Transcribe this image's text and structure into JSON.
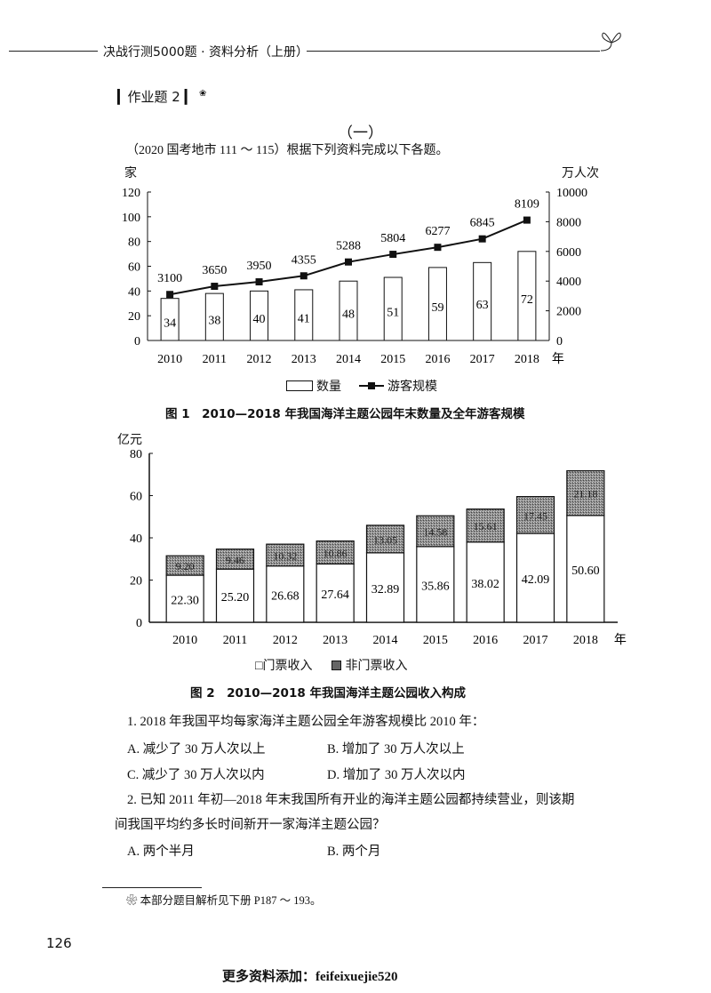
{
  "header": {
    "title": "决战行测5000题 · 资料分析（上册）",
    "leaf_icon": "sprout-icon"
  },
  "assignment": {
    "title": "▎作业题 2 ▎",
    "note_mark": "❀"
  },
  "section": {
    "label": "（一）",
    "intro": "（2020 国考地市 111 ～ 115）根据下列资料完成以下各题。"
  },
  "chart_data": [
    {
      "type": "bar+line",
      "title": "图 1　2010—2018 年我国海洋主题公园年末数量及全年游客规模",
      "categories": [
        "2010",
        "2011",
        "2012",
        "2013",
        "2014",
        "2015",
        "2016",
        "2017",
        "2018"
      ],
      "xlabel": "年",
      "ylabel_left": "家",
      "ylabel_right": "万人次",
      "ylim_left": [
        0,
        120
      ],
      "yticks_left": [
        0,
        20,
        40,
        60,
        80,
        100,
        120
      ],
      "ylim_right": [
        0,
        10000
      ],
      "yticks_right": [
        0,
        2000,
        4000,
        6000,
        8000,
        10000
      ],
      "series": [
        {
          "name": "数量",
          "type": "bar",
          "axis": "left",
          "values": [
            34,
            38,
            40,
            41,
            48,
            51,
            59,
            63,
            72
          ]
        },
        {
          "name": "游客规模",
          "type": "line",
          "axis": "right",
          "values": [
            3100,
            3650,
            3950,
            4355,
            5288,
            5804,
            6277,
            6845,
            8109
          ]
        }
      ],
      "legend": [
        "数量",
        "游客规模"
      ],
      "legend_position": "bottom"
    },
    {
      "type": "stacked-bar",
      "title": "图 2　2010—2018 年我国海洋主题公园收入构成",
      "categories": [
        "2010",
        "2011",
        "2012",
        "2013",
        "2014",
        "2015",
        "2016",
        "2017",
        "2018"
      ],
      "xlabel": "年",
      "ylabel": "亿元",
      "ylim": [
        0,
        80
      ],
      "yticks": [
        0,
        20,
        40,
        60,
        80
      ],
      "series": [
        {
          "name": "门票收入",
          "values": [
            22.3,
            25.2,
            26.68,
            27.64,
            32.89,
            35.86,
            38.02,
            42.09,
            50.6
          ]
        },
        {
          "name": "非门票收入",
          "values": [
            9.2,
            9.46,
            10.32,
            10.86,
            13.05,
            14.58,
            15.61,
            17.45,
            21.18
          ]
        }
      ],
      "legend": [
        "门票收入",
        "非门票收入"
      ],
      "legend_position": "bottom"
    }
  ],
  "fig1": {
    "caption": "图 1　2010—2018 年我国海洋主题公园年末数量及全年游客规模",
    "legend_bar": "数量",
    "legend_line": "游客规模",
    "ylabel_left": "家",
    "ylabel_right": "万人次",
    "year_unit": "年"
  },
  "fig2": {
    "caption": "图 2　2010—2018 年我国海洋主题公园收入构成",
    "legend_ticket": "□门票收入",
    "legend_nonticket": "非门票收入",
    "ylabel": "亿元",
    "year_unit": "年"
  },
  "questions": [
    {
      "stem": "1. 2018 年我国平均每家海洋主题公园全年游客规模比 2010 年：",
      "options": [
        "A. 减少了 30 万人次以上",
        "B. 增加了 30 万人次以上",
        "C. 减少了 30 万人次以内",
        "D. 增加了 30 万人次以内"
      ]
    },
    {
      "stem_line1": "2. 已知 2011 年初—2018 年末我国所有开业的海洋主题公园都持续营业，则该期",
      "stem_line2": "间我国平均约多长时间新开一家海洋主题公园？",
      "options": [
        "A. 两个半月",
        "B. 两个月"
      ]
    }
  ],
  "footnote": "❀ 本部分题目解析见下册 P187 ～ 193。",
  "page_number": "126",
  "watermark": "更多资料添加：feifeixuejie520"
}
